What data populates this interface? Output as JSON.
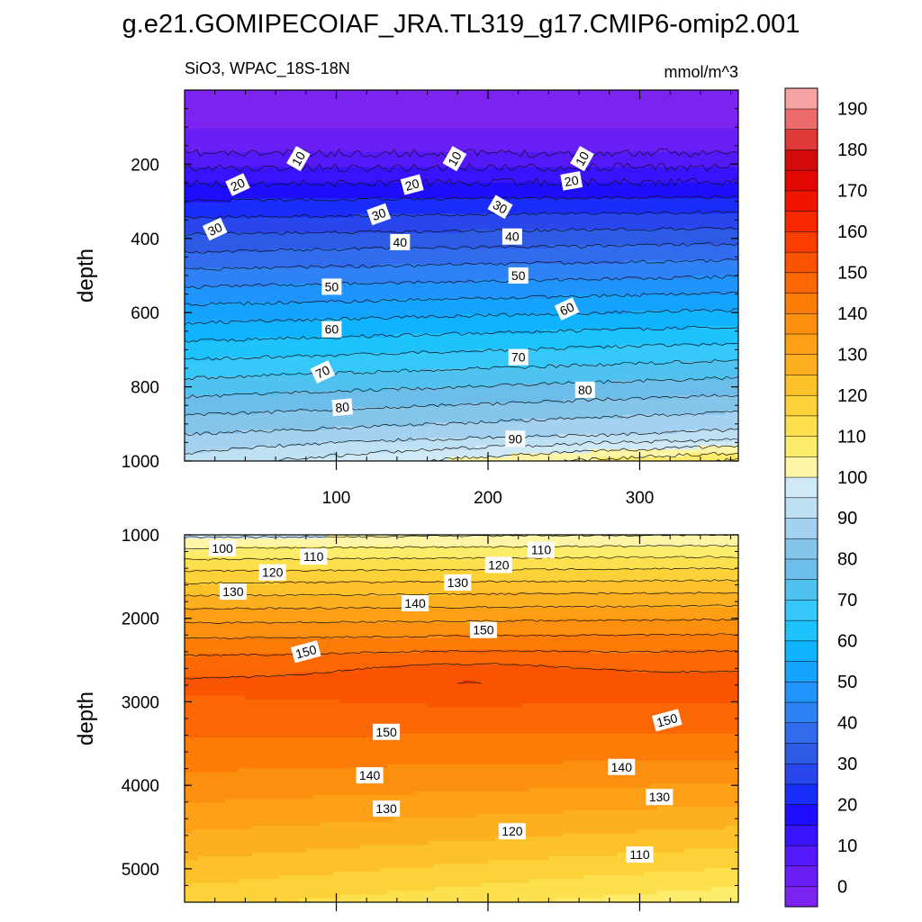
{
  "figure": {
    "title": "g.e21.GOMIPECOIAF_JRA.TL319_g17.CMIP6-omip2.001",
    "subtitle_left": "SiO3, WPAC_18S-18N",
    "units": "mmol/m^3"
  },
  "chart_data": {
    "type": "contour",
    "title": "g.e21.GOMIPECOIAF_JRA.TL319_g17.CMIP6-omip2.001",
    "variable": "SiO3",
    "region": "WPAC_18S-18N",
    "units": "mmol/m^3",
    "ylabel": "depth",
    "colorbar": {
      "levels": [
        -5,
        0,
        5,
        10,
        15,
        20,
        25,
        30,
        35,
        40,
        45,
        50,
        55,
        60,
        65,
        70,
        75,
        80,
        85,
        90,
        95,
        100,
        105,
        110,
        115,
        120,
        125,
        130,
        135,
        140,
        145,
        150,
        155,
        160,
        165,
        170,
        175,
        180,
        185,
        190,
        195
      ],
      "tick_labels": [
        "0",
        "10",
        "20",
        "30",
        "40",
        "50",
        "60",
        "70",
        "80",
        "90",
        "100",
        "110",
        "120",
        "130",
        "140",
        "150",
        "160",
        "170",
        "180",
        "190"
      ],
      "colors": [
        "#7c23f0",
        "#6b1ff7",
        "#5418fb",
        "#3913fe",
        "#1f0efe",
        "#1a2dfb",
        "#2846ec",
        "#2e5be6",
        "#326cee",
        "#2f82f5",
        "#1f94fb",
        "#14a4fd",
        "#10b3fe",
        "#1ec2fd",
        "#35c8f8",
        "#50c2f0",
        "#6dbdea",
        "#86c5ea",
        "#a3d1ef",
        "#bde0f3",
        "#cfe9f7",
        "#fef6a6",
        "#fdeb6a",
        "#fde04e",
        "#fdd238",
        "#fdc12a",
        "#fdb01f",
        "#fda016",
        "#fc8f0e",
        "#fc7c07",
        "#fb6803",
        "#fb5401",
        "#fb3e00",
        "#f82800",
        "#f11500",
        "#e40600",
        "#d20a0a",
        "#e13838",
        "#ec6b6b",
        "#f5a3a3"
      ]
    },
    "panels": [
      {
        "name": "upper",
        "xlim": [
          0,
          365
        ],
        "ylim": [
          0,
          1000
        ],
        "y_inverted": true,
        "xticks": [
          100,
          200,
          300
        ],
        "yticks": [
          200,
          400,
          600,
          800,
          1000
        ],
        "contour_lines": [
          {
            "level": 10,
            "depth": [
              185,
              190,
              195
            ]
          },
          {
            "level": 20,
            "depth": [
              245,
              250,
              255
            ]
          },
          {
            "level": 30,
            "depth": [
              330,
              320,
              310
            ]
          },
          {
            "level": 40,
            "depth": [
              420,
              405,
              392
            ]
          },
          {
            "level": 50,
            "depth": [
              525,
              505,
              485
            ]
          },
          {
            "level": 60,
            "depth": [
              640,
              605,
              570
            ]
          },
          {
            "level": 70,
            "depth": [
              755,
              715,
              675
            ]
          },
          {
            "level": 80,
            "depth": [
              870,
              830,
              785
            ]
          },
          {
            "level": 90,
            "depth": [
              960,
              945,
              925
            ]
          },
          {
            "level": 95,
            "depth": [
              1000,
              1000,
              978
            ]
          }
        ],
        "contour_labels": [
          {
            "text": "10",
            "x": 75,
            "depth": 185,
            "angle": -60
          },
          {
            "text": "10",
            "x": 178,
            "depth": 185,
            "angle": -60
          },
          {
            "text": "10",
            "x": 262,
            "depth": 185,
            "angle": -60
          },
          {
            "text": "20",
            "x": 35,
            "depth": 255,
            "angle": -25
          },
          {
            "text": "20",
            "x": 150,
            "depth": 255,
            "angle": -15
          },
          {
            "text": "20",
            "x": 255,
            "depth": 245,
            "angle": -10
          },
          {
            "text": "30",
            "x": 20,
            "depth": 375,
            "angle": -25
          },
          {
            "text": "30",
            "x": 128,
            "depth": 335,
            "angle": -20
          },
          {
            "text": "30",
            "x": 208,
            "depth": 315,
            "angle": 30
          },
          {
            "text": "40",
            "x": 142,
            "depth": 410,
            "angle": 0
          },
          {
            "text": "40",
            "x": 216,
            "depth": 395,
            "angle": 0
          },
          {
            "text": "50",
            "x": 97,
            "depth": 530,
            "angle": 0
          },
          {
            "text": "50",
            "x": 220,
            "depth": 500,
            "angle": 0
          },
          {
            "text": "60",
            "x": 97,
            "depth": 645,
            "angle": 0
          },
          {
            "text": "60",
            "x": 252,
            "depth": 590,
            "angle": -25
          },
          {
            "text": "70",
            "x": 91,
            "depth": 760,
            "angle": -25
          },
          {
            "text": "70",
            "x": 220,
            "depth": 720,
            "angle": 0
          },
          {
            "text": "80",
            "x": 104,
            "depth": 855,
            "angle": -5
          },
          {
            "text": "80",
            "x": 264,
            "depth": 808,
            "angle": 0
          },
          {
            "text": "90",
            "x": 218,
            "depth": 940,
            "angle": 0
          }
        ]
      },
      {
        "name": "lower",
        "xlim": [
          0,
          365
        ],
        "ylim": [
          1000,
          5400
        ],
        "y_inverted": true,
        "xticks": [
          100,
          200,
          300
        ],
        "yticks": [
          1000,
          2000,
          3000,
          4000,
          5000
        ],
        "contour_labels": [
          {
            "text": "100",
            "x": 25,
            "depth": 1160,
            "angle": 0
          },
          {
            "text": "110",
            "x": 85,
            "depth": 1260,
            "angle": 0
          },
          {
            "text": "110",
            "x": 235,
            "depth": 1180,
            "angle": 0
          },
          {
            "text": "120",
            "x": 58,
            "depth": 1450,
            "angle": 0
          },
          {
            "text": "120",
            "x": 207,
            "depth": 1360,
            "angle": 0
          },
          {
            "text": "130",
            "x": 32,
            "depth": 1680,
            "angle": 0
          },
          {
            "text": "130",
            "x": 180,
            "depth": 1570,
            "angle": 0
          },
          {
            "text": "140",
            "x": 152,
            "depth": 1820,
            "angle": 0
          },
          {
            "text": "150",
            "x": 197,
            "depth": 2140,
            "angle": 0
          },
          {
            "text": "150",
            "x": 80,
            "depth": 2400,
            "angle": -15
          },
          {
            "text": "150",
            "x": 133,
            "depth": 3360,
            "angle": 0
          },
          {
            "text": "150",
            "x": 318,
            "depth": 3220,
            "angle": -15
          },
          {
            "text": "140",
            "x": 122,
            "depth": 3880,
            "angle": 0
          },
          {
            "text": "140",
            "x": 288,
            "depth": 3780,
            "angle": 0
          },
          {
            "text": "130",
            "x": 133,
            "depth": 4280,
            "angle": 0
          },
          {
            "text": "130",
            "x": 313,
            "depth": 4140,
            "angle": 0
          },
          {
            "text": "120",
            "x": 216,
            "depth": 4550,
            "angle": 0
          },
          {
            "text": "110",
            "x": 300,
            "depth": 4830,
            "angle": 0
          }
        ]
      }
    ]
  }
}
